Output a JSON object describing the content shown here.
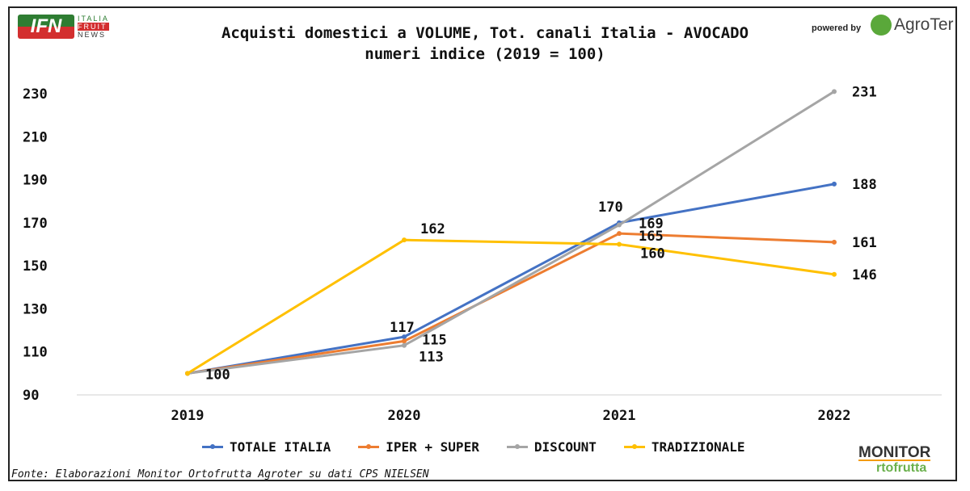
{
  "header": {
    "logo_left": "IFN ITALIA FRUIT NEWS",
    "powered_by": "powered by",
    "logo_right": "AgroTer think fresh"
  },
  "chart_data": {
    "type": "line",
    "title": "Acquisti domestici a VOLUME, Tot. canali Italia - AVOCADO",
    "subtitle": "numeri indice (2019 = 100)",
    "categories": [
      "2019",
      "2020",
      "2021",
      "2022"
    ],
    "yticks": [
      90,
      110,
      130,
      150,
      170,
      190,
      210,
      230
    ],
    "ylim": [
      90,
      230
    ],
    "grid": false,
    "legend_position": "bottom",
    "series": [
      {
        "name": "TOTALE ITALIA",
        "color": "#4472C4",
        "values": [
          100,
          117,
          170,
          188
        ]
      },
      {
        "name": "IPER + SUPER",
        "color": "#ED7D31",
        "values": [
          100,
          115,
          165,
          161
        ]
      },
      {
        "name": "DISCOUNT",
        "color": "#A5A5A5",
        "values": [
          100,
          113,
          169,
          231
        ]
      },
      {
        "name": "TRADIZIONALE",
        "color": "#FFC000",
        "values": [
          100,
          162,
          160,
          146
        ]
      }
    ]
  },
  "footer": {
    "source": "Fonte: Elaborazioni Monitor Ortofrutta Agroter su dati CPS NIELSEN",
    "logo_line1": "MONITOR",
    "logo_line2": "rtofrutta"
  }
}
